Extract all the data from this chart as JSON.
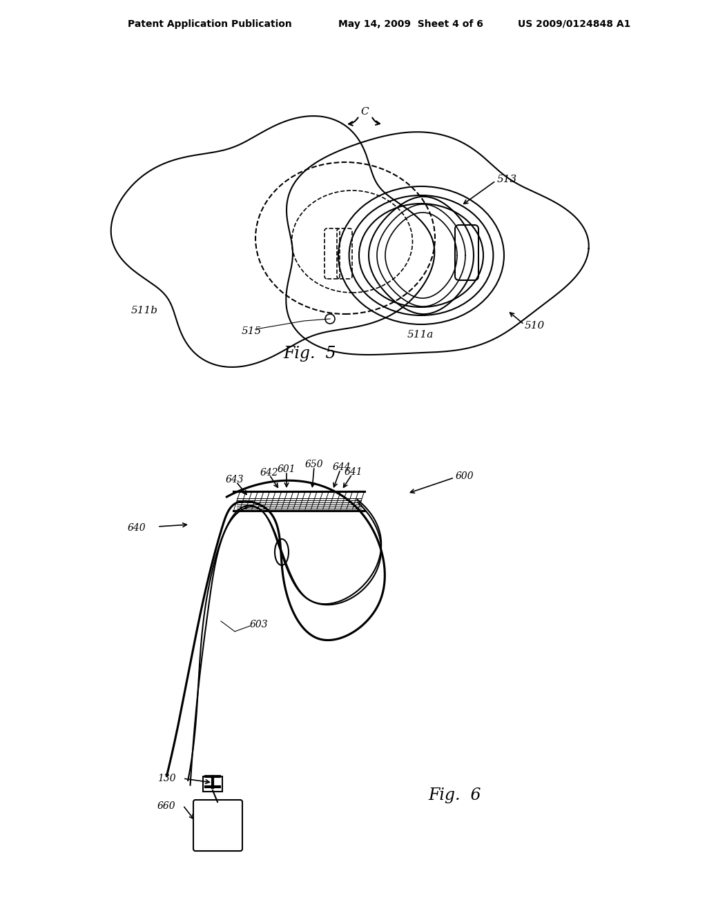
{
  "bg_color": "#ffffff",
  "header_text1": "Patent Application Publication",
  "header_text2": "May 14, 2009  Sheet 4 of 6",
  "header_text3": "US 2009/0124848 A1",
  "fig5_label": "Fig.  5",
  "fig6_label": "Fig.  6",
  "lc": "#000000",
  "lw": 1.5
}
